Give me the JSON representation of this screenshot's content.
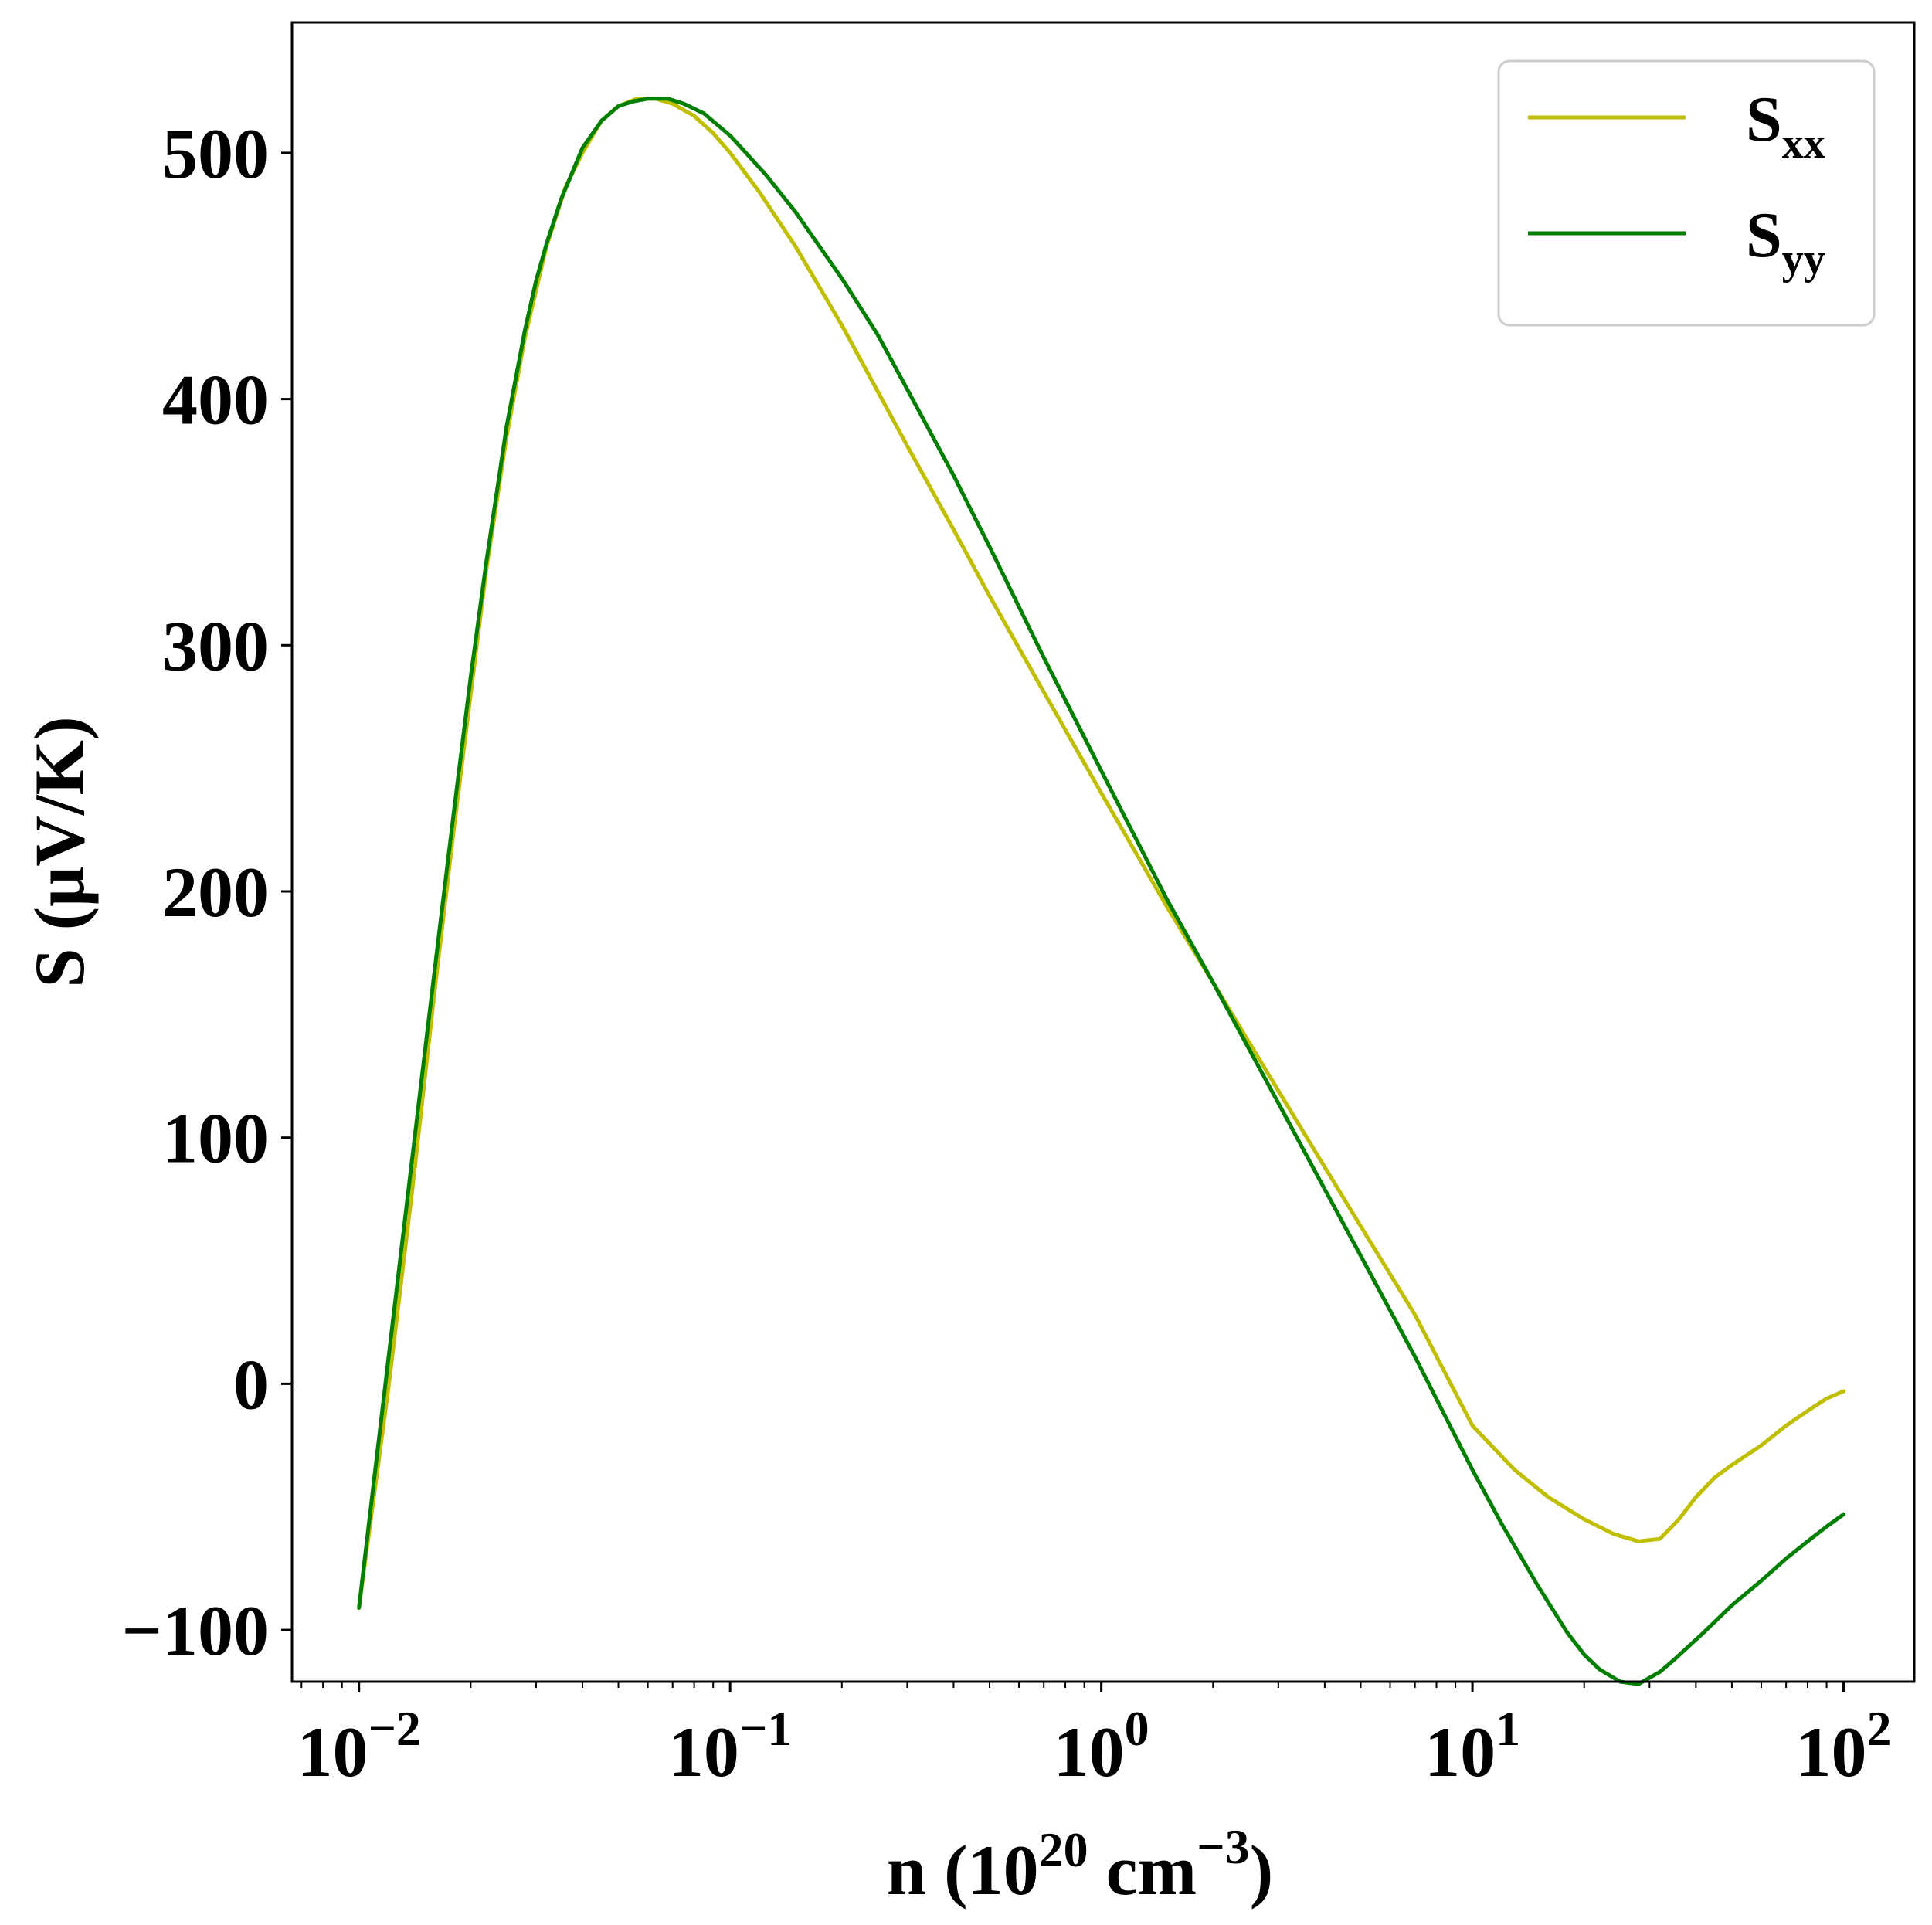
{
  "chart_data": {
    "type": "line",
    "xlabel_parts": [
      "n (10",
      "20",
      " cm",
      "−3",
      ")"
    ],
    "ylabel": "S (μV/K)",
    "xscale": "log",
    "xlim": [
      0.0066,
      155
    ],
    "ylim": [
      -121,
      553
    ],
    "x_ticks": [
      {
        "base": "10",
        "exp": "−2",
        "value": 0.01
      },
      {
        "base": "10",
        "exp": "−1",
        "value": 0.1
      },
      {
        "base": "10",
        "exp": "0",
        "value": 1
      },
      {
        "base": "10",
        "exp": "1",
        "value": 10
      },
      {
        "base": "10",
        "exp": "2",
        "value": 100
      }
    ],
    "y_ticks": [
      {
        "label": "−100",
        "value": -100
      },
      {
        "label": "0",
        "value": 0
      },
      {
        "label": "100",
        "value": 100
      },
      {
        "label": "200",
        "value": 200
      },
      {
        "label": "300",
        "value": 300
      },
      {
        "label": "400",
        "value": 400
      },
      {
        "label": "500",
        "value": 500
      }
    ],
    "legend_position": "top-right",
    "grid": false,
    "series": [
      {
        "name_main": "S",
        "name_sub": "xx",
        "color": "#bfbf00",
        "x": [
          0.01,
          0.012,
          0.014,
          0.016,
          0.018,
          0.02,
          0.022,
          0.025,
          0.028,
          0.032,
          0.036,
          0.04,
          0.045,
          0.05,
          0.056,
          0.063,
          0.07,
          0.08,
          0.09,
          0.1,
          0.12,
          0.15,
          0.2,
          0.25,
          0.3,
          0.4,
          0.5,
          0.7,
          1.0,
          1.5,
          2.0,
          3.0,
          4.0,
          5.0,
          7.0,
          10.0,
          13.0,
          16.0,
          20.0,
          24.0,
          28.0,
          32.0,
          36.0,
          40.0,
          45.0,
          50.0,
          60.0,
          70.0,
          80.0,
          90.0,
          100.0
        ],
        "values": [
          -91,
          -2,
          82,
          160,
          225,
          280,
          330,
          385,
          425,
          462,
          486,
          500,
          513,
          519,
          522,
          522,
          520,
          515,
          508,
          500,
          484,
          462,
          430,
          403,
          381,
          347,
          320,
          281,
          240,
          194,
          163,
          119,
          88,
          64,
          28,
          -17,
          -35,
          -46,
          -55,
          -61,
          -64,
          -63,
          -55,
          -46,
          -38,
          -33,
          -25,
          -17,
          -11,
          -6,
          -3
        ]
      },
      {
        "name_main": "S",
        "name_sub": "yy",
        "color": "#007f00",
        "x": [
          0.01,
          0.011,
          0.012,
          0.0135,
          0.015,
          0.0165,
          0.018,
          0.02,
          0.022,
          0.025,
          0.028,
          0.03,
          0.032,
          0.035,
          0.04,
          0.045,
          0.05,
          0.055,
          0.06,
          0.068,
          0.075,
          0.085,
          0.1,
          0.125,
          0.15,
          0.2,
          0.25,
          0.3,
          0.4,
          0.5,
          0.7,
          1.0,
          1.5,
          2.0,
          3.0,
          4.0,
          5.0,
          7.0,
          10.0,
          12.0,
          15.0,
          18.0,
          20.0,
          22.0,
          25.0,
          28.0,
          32.0,
          35.0,
          38.0,
          42.0,
          50.0,
          60.0,
          70.0,
          80.0,
          90.0,
          100.0
        ],
        "values": [
          -91,
          -38,
          10,
          75,
          133,
          185,
          232,
          287,
          333,
          389,
          428,
          448,
          463,
          481,
          502,
          513,
          519,
          521,
          522,
          522,
          520,
          516,
          507,
          491,
          476,
          449,
          426,
          404,
          369,
          340,
          295,
          249,
          197,
          163,
          114,
          79,
          52,
          11,
          -35,
          -57,
          -82,
          -101,
          -110,
          -116,
          -121,
          -122,
          -117,
          -112,
          -107,
          -101,
          -90,
          -80,
          -71,
          -64,
          -58,
          -53
        ]
      }
    ]
  }
}
